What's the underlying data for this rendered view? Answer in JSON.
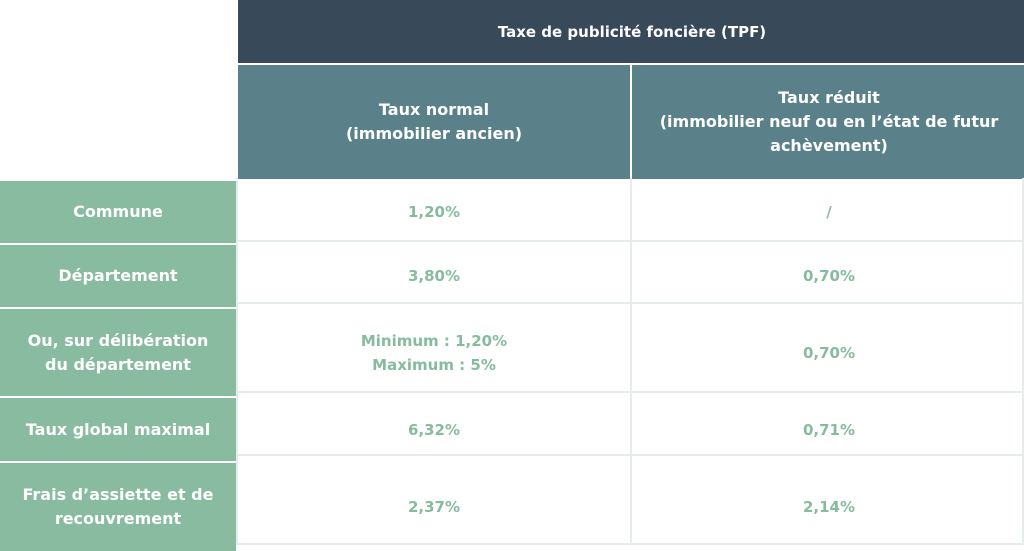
{
  "table": {
    "top_header": "Taxe de publicité foncière (TPF)",
    "columns": [
      "Taux normal\n(immobilier ancien)",
      "Taux réduit\n(immobilier neuf ou en l’état de futur\nachèvement)"
    ],
    "rows": [
      {
        "label": "Commune",
        "normal": "1,20%",
        "reduit": "/"
      },
      {
        "label": "Département",
        "normal": "3,80%",
        "reduit": "0,70%"
      },
      {
        "label": "Ou, sur délibération\ndu département",
        "normal": "Minimum : 1,20%\nMaximum : 5%",
        "reduit": "0,70%"
      },
      {
        "label": "Taux global maximal",
        "normal": "6,32%",
        "reduit": "0,71%"
      },
      {
        "label": "Frais d’assiette et de\nrecouvrement",
        "normal": "2,37%",
        "reduit": "2,14%"
      }
    ]
  },
  "colors": {
    "top_header_bg": "#384a5a",
    "column_header_bg": "#5a818a",
    "row_header_bg": "#88bb9f",
    "value_text": "#86bc9d"
  }
}
